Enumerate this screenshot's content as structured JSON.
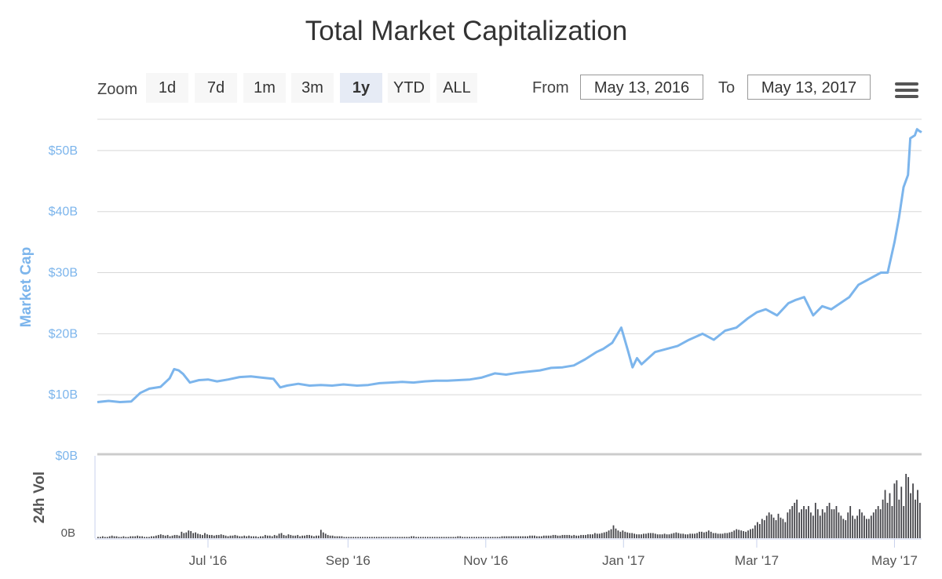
{
  "title": "Total Market Capitalization",
  "toolbar": {
    "zoom_label": "Zoom",
    "zoom_buttons": [
      "1d",
      "7d",
      "1m",
      "3m",
      "1y",
      "YTD",
      "ALL"
    ],
    "active_zoom": "1y",
    "from_label": "From",
    "from_value": "May 13, 2016",
    "to_label": "To",
    "to_value": "May 13, 2017"
  },
  "colors": {
    "line": "#7cb5ec",
    "volume": "#434348",
    "grid": "#d8d8d8",
    "axis_label": "#7cb5ec"
  },
  "chart_data": [
    {
      "type": "line",
      "ylabel": "Market Cap",
      "ylim": [
        0,
        55
      ],
      "y_ticks": [
        0,
        10,
        20,
        30,
        40,
        50
      ],
      "y_tick_labels": [
        "$0B",
        "$10B",
        "$20B",
        "$30B",
        "$40B",
        "$50B"
      ],
      "x_range": [
        "2016-05-13",
        "2017-05-13"
      ],
      "x_ticks": [
        "2016-07-01",
        "2016-09-01",
        "2016-11-01",
        "2017-01-01",
        "2017-03-01",
        "2017-05-01"
      ],
      "x_tick_labels": [
        "Jul '16",
        "Sep '16",
        "Nov '16",
        "Jan '17",
        "Mar '17",
        "May '17"
      ],
      "grid": true,
      "series": [
        {
          "name": "Market Cap",
          "x": [
            "2016-05-13",
            "2016-05-18",
            "2016-05-23",
            "2016-05-28",
            "2016-06-01",
            "2016-06-05",
            "2016-06-10",
            "2016-06-14",
            "2016-06-16",
            "2016-06-18",
            "2016-06-20",
            "2016-06-23",
            "2016-06-27",
            "2016-07-01",
            "2016-07-05",
            "2016-07-10",
            "2016-07-15",
            "2016-07-20",
            "2016-07-25",
            "2016-07-30",
            "2016-08-02",
            "2016-08-05",
            "2016-08-10",
            "2016-08-15",
            "2016-08-20",
            "2016-08-25",
            "2016-08-30",
            "2016-09-05",
            "2016-09-10",
            "2016-09-15",
            "2016-09-20",
            "2016-09-25",
            "2016-09-30",
            "2016-10-05",
            "2016-10-10",
            "2016-10-15",
            "2016-10-20",
            "2016-10-25",
            "2016-10-30",
            "2016-11-05",
            "2016-11-10",
            "2016-11-15",
            "2016-11-20",
            "2016-11-25",
            "2016-11-30",
            "2016-12-05",
            "2016-12-10",
            "2016-12-15",
            "2016-12-20",
            "2016-12-23",
            "2016-12-27",
            "2016-12-31",
            "2017-01-03",
            "2017-01-05",
            "2017-01-07",
            "2017-01-09",
            "2017-01-12",
            "2017-01-15",
            "2017-01-20",
            "2017-01-25",
            "2017-01-30",
            "2017-02-05",
            "2017-02-10",
            "2017-02-15",
            "2017-02-20",
            "2017-02-25",
            "2017-03-01",
            "2017-03-05",
            "2017-03-10",
            "2017-03-15",
            "2017-03-18",
            "2017-03-22",
            "2017-03-26",
            "2017-03-30",
            "2017-04-03",
            "2017-04-07",
            "2017-04-11",
            "2017-04-15",
            "2017-04-20",
            "2017-04-25",
            "2017-04-28",
            "2017-05-01",
            "2017-05-03",
            "2017-05-05",
            "2017-05-07",
            "2017-05-08",
            "2017-05-10",
            "2017-05-11",
            "2017-05-12",
            "2017-05-13"
          ],
          "y": [
            8.8,
            9.0,
            8.8,
            8.9,
            10.3,
            11.0,
            11.3,
            12.7,
            14.2,
            14.0,
            13.4,
            12.0,
            12.4,
            12.5,
            12.2,
            12.5,
            12.9,
            13.0,
            12.8,
            12.6,
            11.2,
            11.5,
            11.8,
            11.5,
            11.6,
            11.5,
            11.7,
            11.5,
            11.6,
            11.9,
            12.0,
            12.1,
            12.0,
            12.2,
            12.3,
            12.3,
            12.4,
            12.5,
            12.8,
            13.5,
            13.3,
            13.6,
            13.8,
            14.0,
            14.4,
            14.5,
            14.8,
            15.8,
            17.0,
            17.5,
            18.5,
            21.0,
            17.2,
            14.5,
            16.0,
            15.0,
            16.0,
            17.0,
            17.5,
            18.0,
            19.0,
            20.0,
            19.0,
            20.5,
            21.0,
            22.5,
            23.5,
            24.0,
            23.0,
            25.0,
            25.5,
            26.0,
            23.0,
            24.5,
            24.0,
            25.0,
            26.0,
            28.0,
            29.0,
            30.0,
            30.0,
            35.0,
            39.0,
            44.0,
            46.0,
            52.0,
            52.5,
            53.5,
            53.2,
            53.0
          ]
        }
      ]
    },
    {
      "type": "bar",
      "ylabel": "24h Vol",
      "y_ticks": [
        0
      ],
      "y_tick_labels": [
        "0B"
      ],
      "note": "relative daily volume, 0-1 scale of panel maximum",
      "series": [
        {
          "name": "24h Vol",
          "values": [
            0.02,
            0.02,
            0.03,
            0.02,
            0.02,
            0.03,
            0.04,
            0.03,
            0.03,
            0.02,
            0.02,
            0.03,
            0.02,
            0.02,
            0.03,
            0.03,
            0.03,
            0.04,
            0.03,
            0.03,
            0.02,
            0.02,
            0.02,
            0.03,
            0.03,
            0.04,
            0.05,
            0.06,
            0.05,
            0.04,
            0.05,
            0.03,
            0.04,
            0.05,
            0.05,
            0.04,
            0.1,
            0.08,
            0.09,
            0.12,
            0.11,
            0.08,
            0.09,
            0.07,
            0.06,
            0.05,
            0.08,
            0.06,
            0.05,
            0.05,
            0.04,
            0.05,
            0.05,
            0.06,
            0.05,
            0.04,
            0.03,
            0.04,
            0.04,
            0.05,
            0.04,
            0.03,
            0.03,
            0.04,
            0.03,
            0.04,
            0.03,
            0.03,
            0.03,
            0.02,
            0.03,
            0.03,
            0.05,
            0.04,
            0.04,
            0.03,
            0.05,
            0.04,
            0.07,
            0.08,
            0.05,
            0.04,
            0.06,
            0.05,
            0.04,
            0.04,
            0.05,
            0.03,
            0.04,
            0.04,
            0.05,
            0.05,
            0.04,
            0.03,
            0.04,
            0.04,
            0.13,
            0.09,
            0.07,
            0.05,
            0.04,
            0.04,
            0.03,
            0.03,
            0.03,
            0.03,
            0.02,
            0.02,
            0.02,
            0.02,
            0.02,
            0.02,
            0.02,
            0.02,
            0.02,
            0.02,
            0.02,
            0.02,
            0.02,
            0.02,
            0.02,
            0.02,
            0.02,
            0.02,
            0.02,
            0.02,
            0.02,
            0.02,
            0.02,
            0.02,
            0.02,
            0.02,
            0.02,
            0.02,
            0.02,
            0.03,
            0.03,
            0.02,
            0.02,
            0.02,
            0.02,
            0.02,
            0.02,
            0.02,
            0.02,
            0.02,
            0.02,
            0.02,
            0.02,
            0.02,
            0.02,
            0.02,
            0.02,
            0.02,
            0.02,
            0.03,
            0.03,
            0.02,
            0.02,
            0.02,
            0.02,
            0.02,
            0.02,
            0.02,
            0.02,
            0.02,
            0.02,
            0.02,
            0.02,
            0.02,
            0.02,
            0.02,
            0.02,
            0.02,
            0.03,
            0.03,
            0.03,
            0.03,
            0.03,
            0.03,
            0.03,
            0.03,
            0.03,
            0.03,
            0.03,
            0.03,
            0.04,
            0.04,
            0.04,
            0.03,
            0.03,
            0.03,
            0.04,
            0.04,
            0.04,
            0.04,
            0.05,
            0.05,
            0.04,
            0.04,
            0.05,
            0.05,
            0.05,
            0.05,
            0.04,
            0.05,
            0.04,
            0.04,
            0.05,
            0.05,
            0.05,
            0.06,
            0.06,
            0.06,
            0.08,
            0.07,
            0.07,
            0.08,
            0.09,
            0.1,
            0.12,
            0.14,
            0.2,
            0.15,
            0.12,
            0.1,
            0.12,
            0.1,
            0.09,
            0.08,
            0.08,
            0.07,
            0.06,
            0.06,
            0.06,
            0.07,
            0.07,
            0.08,
            0.08,
            0.08,
            0.07,
            0.06,
            0.06,
            0.06,
            0.07,
            0.06,
            0.06,
            0.07,
            0.08,
            0.09,
            0.08,
            0.07,
            0.07,
            0.06,
            0.06,
            0.07,
            0.07,
            0.07,
            0.08,
            0.1,
            0.1,
            0.09,
            0.1,
            0.12,
            0.1,
            0.08,
            0.08,
            0.07,
            0.07,
            0.07,
            0.08,
            0.08,
            0.09,
            0.1,
            0.12,
            0.14,
            0.13,
            0.12,
            0.11,
            0.1,
            0.12,
            0.14,
            0.15,
            0.2,
            0.25,
            0.22,
            0.3,
            0.28,
            0.35,
            0.4,
            0.37,
            0.32,
            0.28,
            0.38,
            0.32,
            0.3,
            0.25,
            0.4,
            0.45,
            0.5,
            0.55,
            0.6,
            0.4,
            0.45,
            0.5,
            0.45,
            0.5,
            0.4,
            0.35,
            0.55,
            0.45,
            0.35,
            0.45,
            0.4,
            0.5,
            0.55,
            0.45,
            0.45,
            0.5,
            0.4,
            0.35,
            0.3,
            0.28,
            0.4,
            0.5,
            0.35,
            0.3,
            0.35,
            0.45,
            0.4,
            0.35,
            0.3,
            0.3,
            0.35,
            0.4,
            0.45,
            0.5,
            0.45,
            0.6,
            0.75,
            0.55,
            0.7,
            0.5,
            0.85,
            0.9,
            0.6,
            0.8,
            0.5,
            1.0,
            0.95,
            0.7,
            0.85,
            0.6,
            0.75,
            0.55
          ]
        }
      ]
    }
  ]
}
